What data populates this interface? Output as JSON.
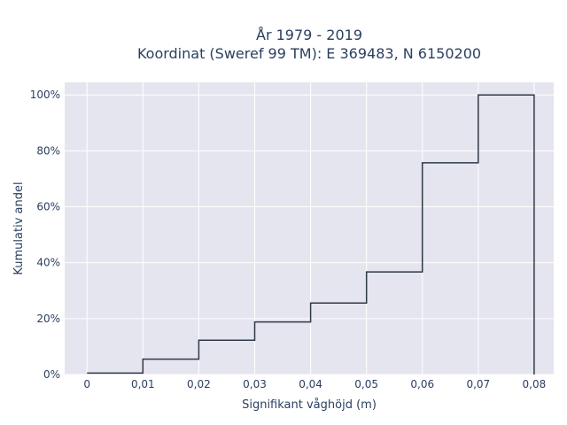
{
  "chart_data": {
    "type": "line",
    "line_shape": "step",
    "title_lines": [
      "År 1979 - 2019",
      "Koordinat (Sweref 99 TM): E 369483, N 6150200"
    ],
    "xlabel": "Signifikant våghöjd (m)",
    "ylabel": "Kumulativ andel",
    "x_ticks": [
      "0",
      "0,01",
      "0,02",
      "0,03",
      "0,04",
      "0,05",
      "0,06",
      "0,07",
      "0,08"
    ],
    "y_ticks": [
      "0%",
      "20%",
      "40%",
      "60%",
      "80%",
      "100%"
    ],
    "xlim": [
      -0.004,
      0.0835
    ],
    "ylim": [
      0,
      1.045
    ],
    "grid": true,
    "legend": "none",
    "series": [
      {
        "x": [
          0,
          0.01,
          0.01,
          0.02,
          0.02,
          0.03,
          0.03,
          0.04,
          0.04,
          0.05,
          0.05,
          0.06,
          0.06,
          0.07,
          0.07,
          0.08,
          0.08
        ],
        "y": [
          0.005,
          0.005,
          0.055,
          0.055,
          0.123,
          0.123,
          0.188,
          0.188,
          0.256,
          0.256,
          0.367,
          0.367,
          0.757,
          0.757,
          1.0,
          1.0,
          0.0
        ],
        "color": "#2e3a46"
      }
    ],
    "colors": {
      "plot_bg": "#e5e5ef",
      "grid": "#ffffff",
      "text": "#2a3f5f"
    }
  }
}
